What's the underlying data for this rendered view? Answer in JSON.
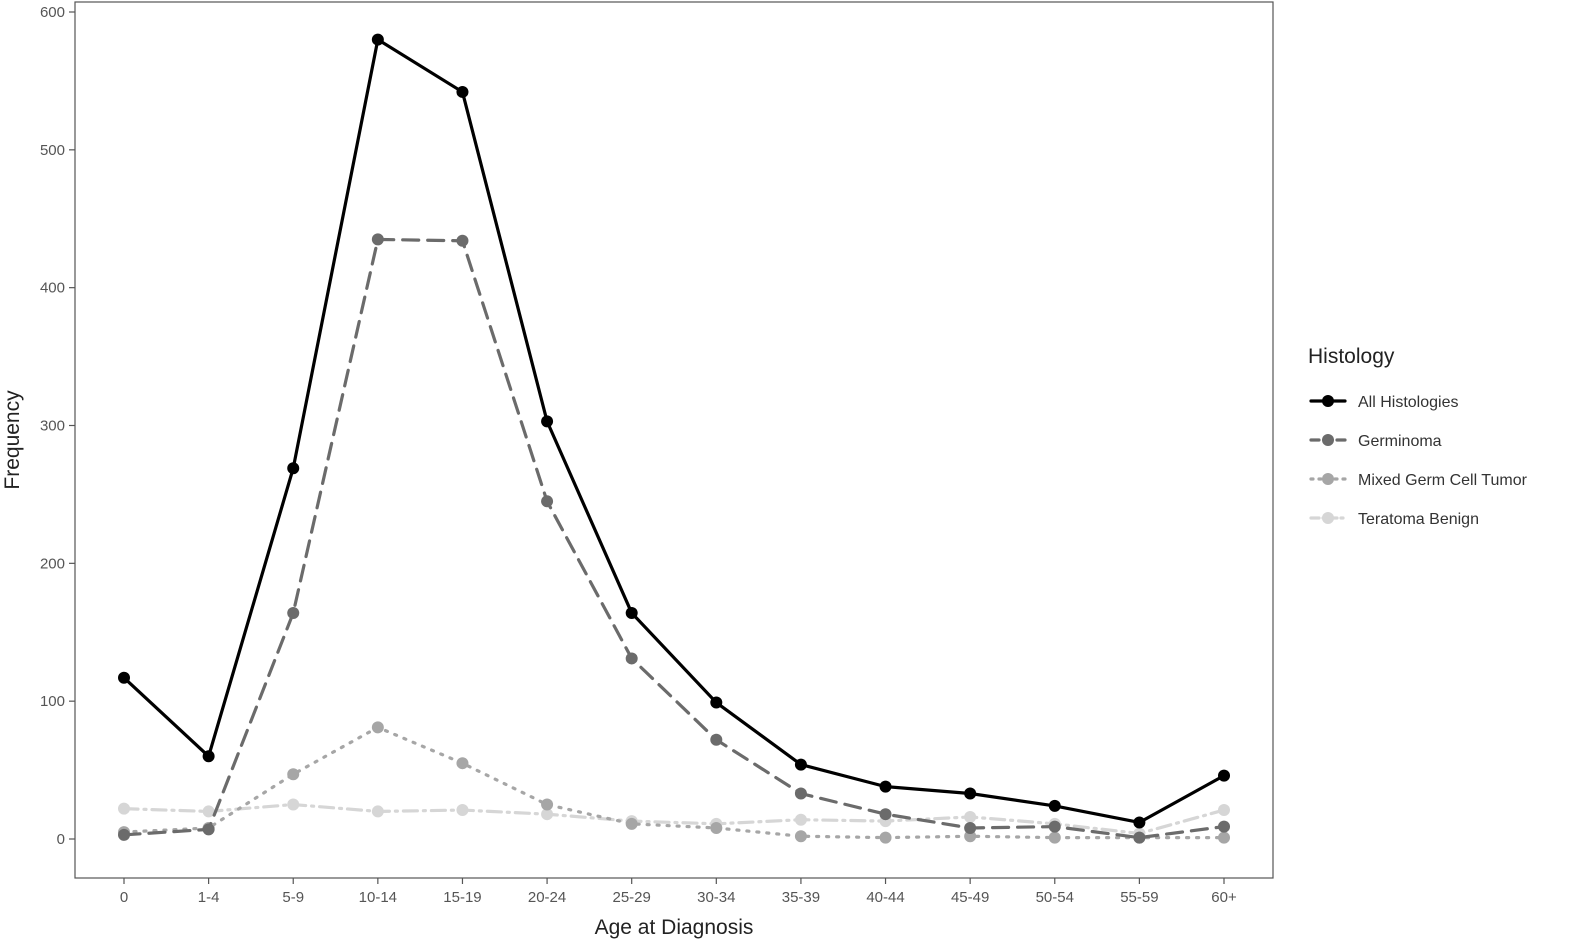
{
  "chart_data": {
    "type": "line",
    "xlabel": "Age at Diagnosis",
    "ylabel": "Frequency",
    "ylim": [
      -30,
      600
    ],
    "yticks": [
      0,
      100,
      200,
      300,
      400,
      500,
      600
    ],
    "grid": false,
    "legend": {
      "title": "Histology",
      "position": "right"
    },
    "categories": [
      "0",
      "1-4",
      "5-9",
      "10-14",
      "15-19",
      "20-24",
      "25-29",
      "30-34",
      "35-39",
      "40-44",
      "45-49",
      "50-54",
      "55-59",
      "60+"
    ],
    "series": [
      {
        "name": "All Histologies",
        "color": "#000000",
        "dash": "solid",
        "values": [
          117,
          60,
          269,
          580,
          542,
          303,
          164,
          99,
          54,
          38,
          33,
          24,
          12,
          46
        ]
      },
      {
        "name": "Germinoma",
        "color": "#6b6b6b",
        "dash": "dashed",
        "values": [
          3,
          7,
          164,
          435,
          434,
          245,
          131,
          72,
          33,
          18,
          8,
          9,
          1,
          9
        ]
      },
      {
        "name": "Mixed Germ Cell Tumor",
        "color": "#a6a6a6",
        "dash": "dotted",
        "values": [
          5,
          8,
          47,
          81,
          55,
          25,
          11,
          8,
          2,
          1,
          2,
          1,
          1,
          1
        ]
      },
      {
        "name": "Teratoma Benign",
        "color": "#d6d6d6",
        "dash": "dashdot",
        "values": [
          22,
          20,
          25,
          20,
          21,
          18,
          13,
          11,
          14,
          13,
          16,
          11,
          4,
          21
        ]
      }
    ]
  }
}
